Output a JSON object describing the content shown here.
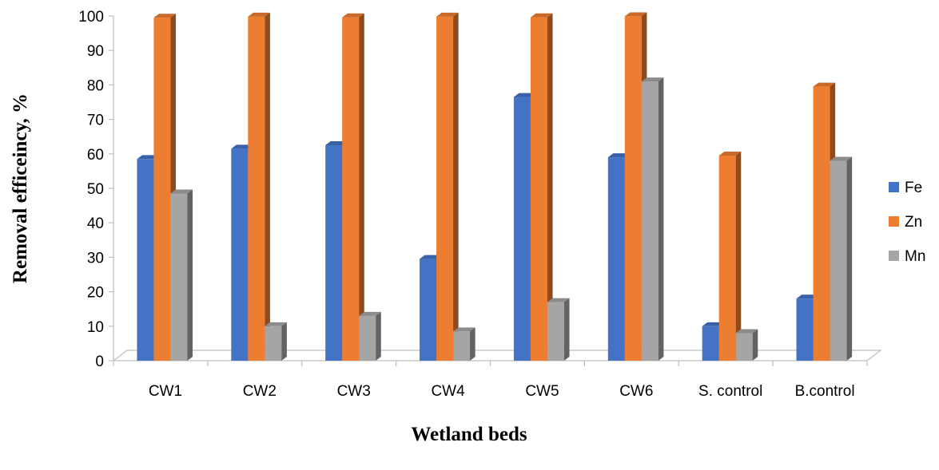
{
  "chart_data": {
    "type": "bar",
    "title": "",
    "xlabel": "Wetland beds",
    "ylabel": "Removal efficeincy, %",
    "ylim": [
      0,
      100
    ],
    "yticks": [
      0,
      10,
      20,
      30,
      40,
      50,
      60,
      70,
      80,
      90,
      100
    ],
    "categories": [
      "CW1",
      "CW2",
      "CW3",
      "CW4",
      "CW5",
      "CW6",
      "S. control",
      "B.control"
    ],
    "series": [
      {
        "name": "Fe",
        "color": "#4472C4",
        "values": [
          58.5,
          61.5,
          62.5,
          29.5,
          76.5,
          59,
          10,
          18
        ]
      },
      {
        "name": "Zn",
        "color": "#ED7D31",
        "values": [
          99.5,
          99.8,
          99.6,
          99.8,
          99.6,
          99.9,
          59.5,
          79.5
        ]
      },
      {
        "name": "Mn",
        "color": "#A5A5A5",
        "values": [
          48.5,
          10,
          13,
          8.5,
          17,
          81,
          8,
          58
        ]
      }
    ],
    "legend_position": "right",
    "grid": false,
    "style": "3d-clustered-column"
  }
}
